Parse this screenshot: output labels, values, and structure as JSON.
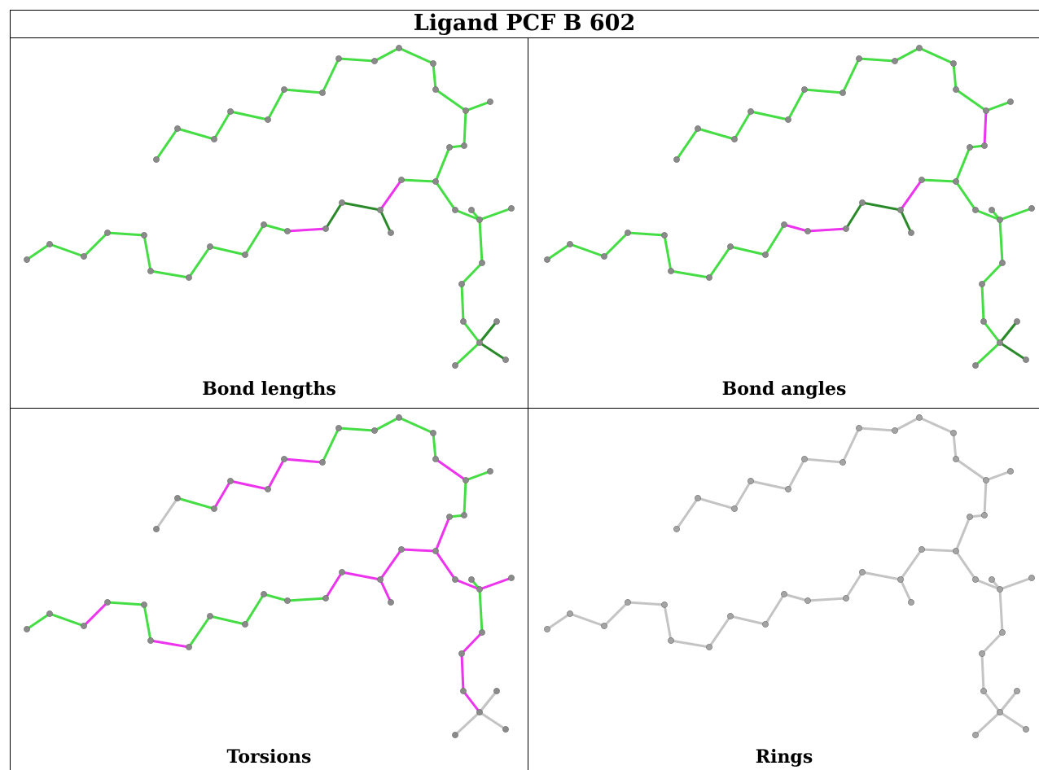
{
  "title": "Ligand PCF B 602",
  "colors": {
    "ok": "#44dd44",
    "ok_dark": "#2a8a2a",
    "outlier": "#ee33ee",
    "none": "#c4c4c4",
    "atom": "#8a8a8a",
    "atom_light": "#a4a4a4"
  },
  "panels": [
    {
      "caption": "Bond lengths",
      "outliers": [
        "c1",
        "e1"
      ],
      "mode": "ok",
      "dark": [
        "b5",
        "b6",
        "f0",
        "j1",
        "j3"
      ]
    },
    {
      "caption": "Bond angles",
      "outliers": [
        "c0",
        "c1",
        "e0",
        "e1"
      ],
      "mode": "ok",
      "dark": [
        "b5",
        "b6",
        "f0",
        "j1",
        "j3"
      ]
    },
    {
      "caption": "Torsions",
      "outliers": [
        "a2",
        "a3",
        "a4",
        "a5",
        "c1",
        "a11",
        "b2",
        "b3",
        "b5",
        "b6",
        "f0",
        "f1",
        "g0",
        "g1",
        "h1",
        "i0",
        "i1",
        "d2",
        "d5"
      ],
      "gray": [
        "a0",
        "j0",
        "j1",
        "j2",
        "j3"
      ],
      "mode": "ok",
      "dark": [
        "b5",
        "f0"
      ]
    },
    {
      "caption": "Rings",
      "outliers": [],
      "mode": "none",
      "dark": []
    }
  ]
}
